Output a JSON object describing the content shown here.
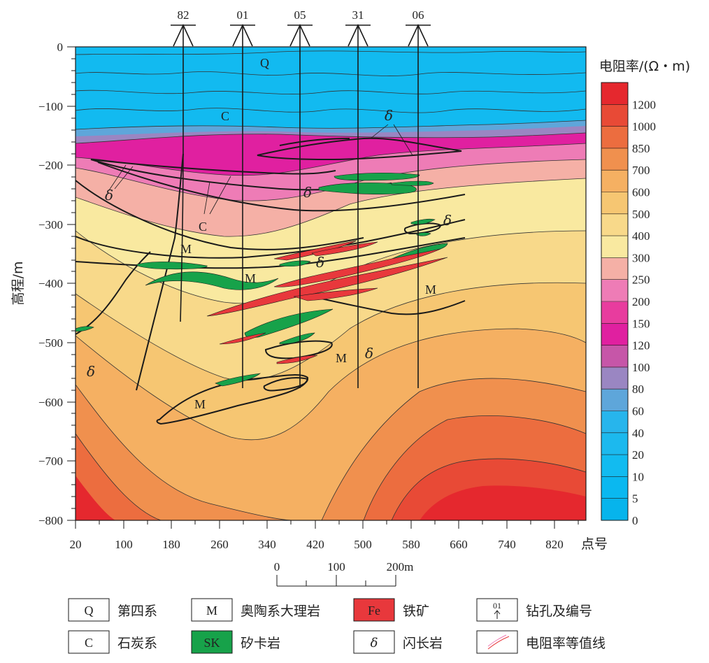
{
  "profile": {
    "y_axis_title": "高程/m",
    "x_axis_title": "点号",
    "x_ticks": [
      "20",
      "100",
      "180",
      "260",
      "340",
      "420",
      "500",
      "580",
      "660",
      "740",
      "820"
    ],
    "y_ticks": [
      "0",
      "−100",
      "−200",
      "−300",
      "−400",
      "−500",
      "−600",
      "−700",
      "−800"
    ],
    "boreholes": [
      "82",
      "01",
      "05",
      "31",
      "06"
    ],
    "scale_bar": {
      "labels": [
        "0",
        "100",
        "200m"
      ]
    }
  },
  "colorbar": {
    "title": "电阻率/(Ω・m)",
    "levels": [
      "0",
      "5",
      "10",
      "20",
      "40",
      "60",
      "80",
      "100",
      "120",
      "150",
      "200",
      "250",
      "300",
      "400",
      "500",
      "600",
      "700",
      "850",
      "1000",
      "1200"
    ],
    "colors": [
      "#06b4ec",
      "#0ab8f0",
      "#12bbf0",
      "#1cb9ee",
      "#27b5ec",
      "#5ea6da",
      "#9a86c2",
      "#c656a8",
      "#e020a0",
      "#e83c9e",
      "#ee7cb6",
      "#f5b0a6",
      "#f9e9a0",
      "#f8d98a",
      "#f6c672",
      "#f5b062",
      "#f0904e",
      "#ec6d3f",
      "#e84a36",
      "#e5282e"
    ]
  },
  "labels": {
    "Q": "Q",
    "C": "C",
    "M": "M",
    "delta": "δ"
  },
  "legend": [
    {
      "symbol": "Q",
      "text": "第四系"
    },
    {
      "symbol": "M",
      "text": "奥陶系大理岩"
    },
    {
      "symbol": "Fe",
      "text": "铁矿"
    },
    {
      "symbol": "01",
      "text": "钻孔及编号"
    },
    {
      "symbol": "C",
      "text": "石炭系"
    },
    {
      "symbol": "SK",
      "text": "矽卡岩"
    },
    {
      "symbol": "δ",
      "text": "闪长岩"
    },
    {
      "symbol": "",
      "text": "电阻率等值线"
    }
  ],
  "colors": {
    "skarn": "#17a24a",
    "iron": "#e8383c",
    "line": "#1a1a1a"
  }
}
